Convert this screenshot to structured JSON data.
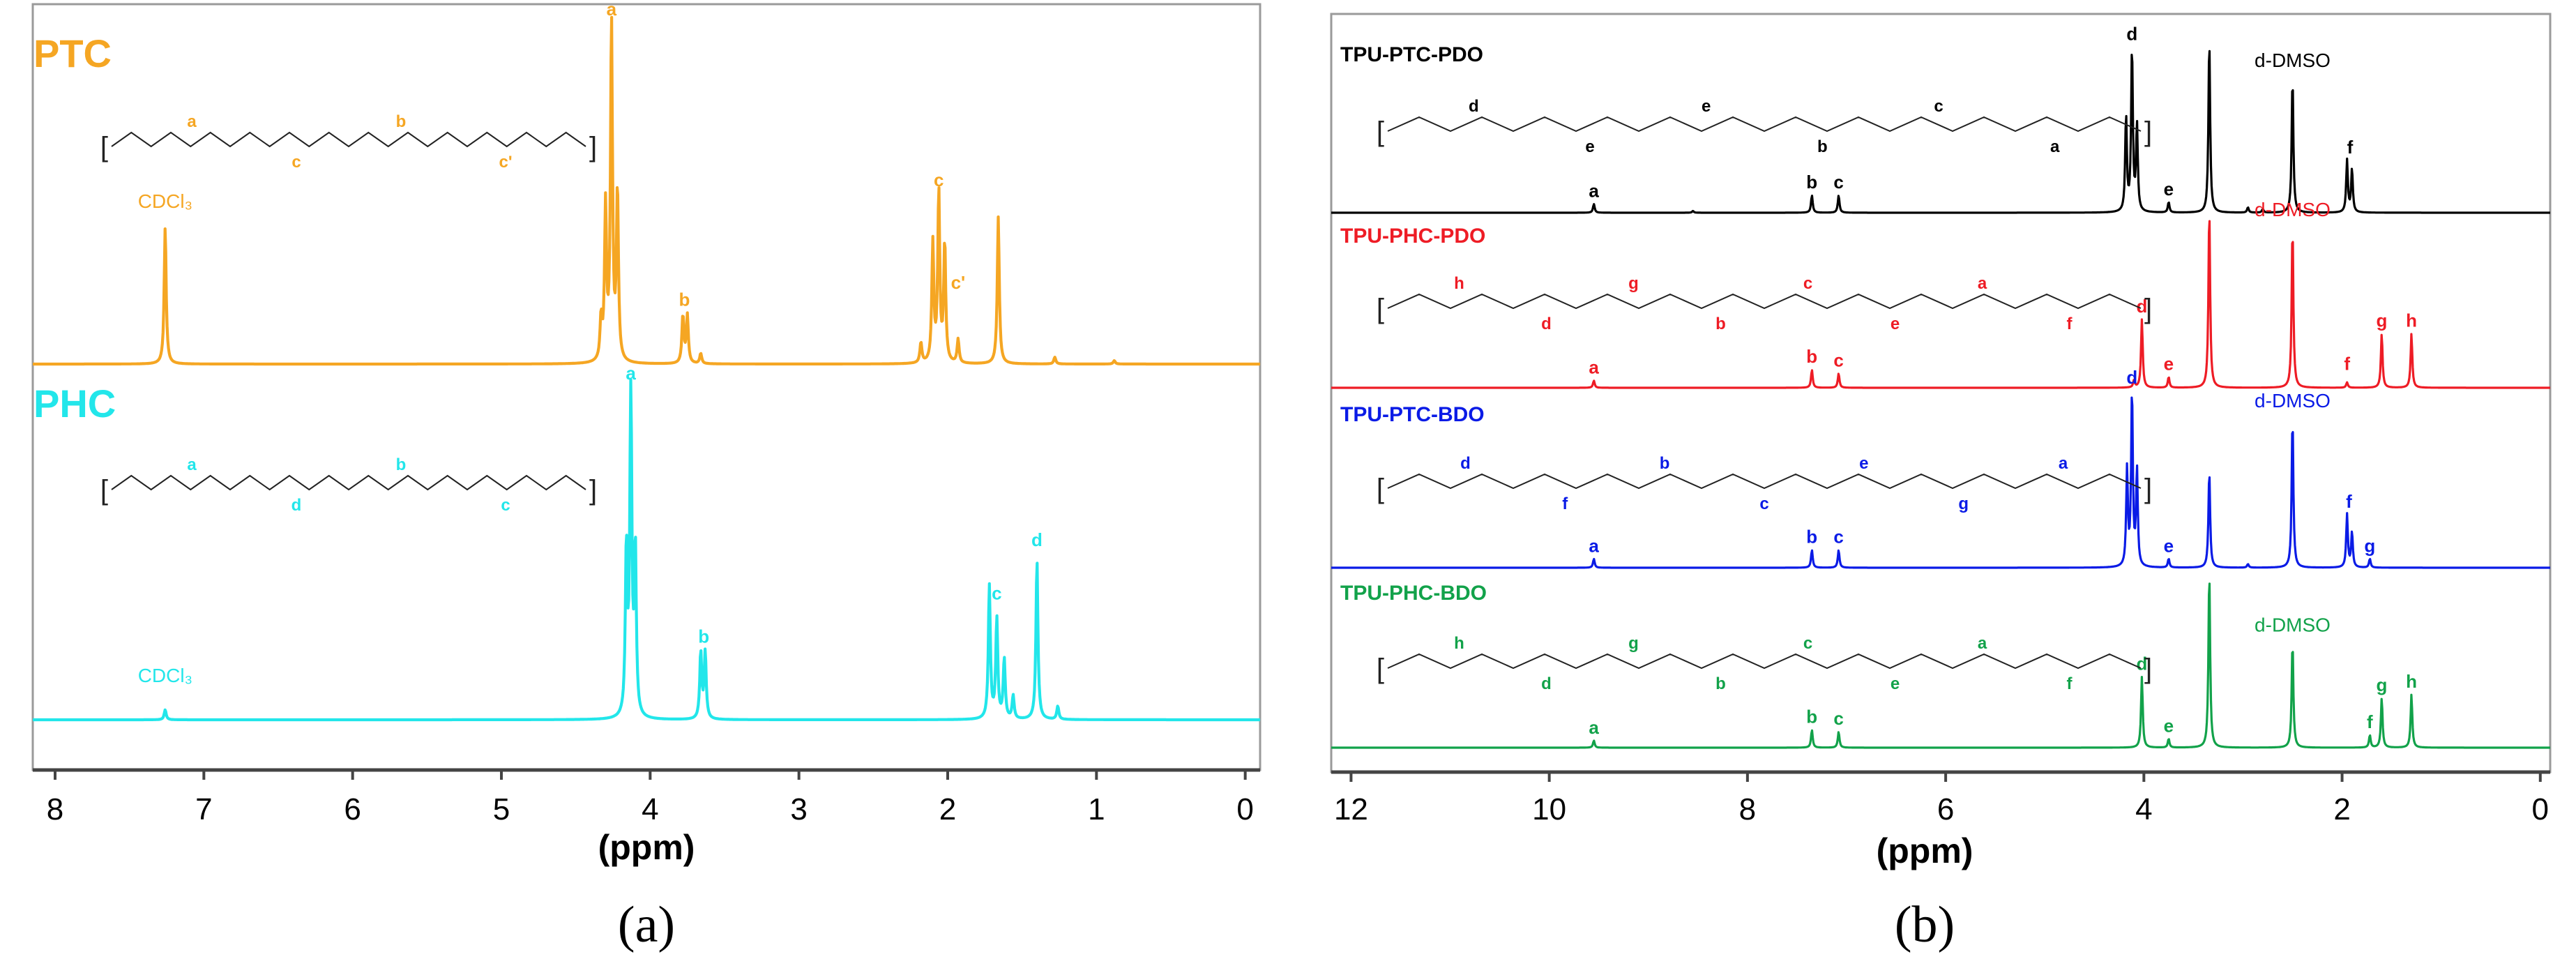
{
  "chart_data": [
    {
      "panel_label": "(a)",
      "type": "line",
      "subtype": "stacked 1H NMR spectra",
      "xlabel": "(ppm)",
      "xlim": [
        8.15,
        -0.1
      ],
      "x_reversed": true,
      "x_ticks": [
        8,
        7,
        6,
        5,
        4,
        3,
        2,
        1,
        0
      ],
      "grid": false,
      "series": [
        {
          "name": "PTC",
          "color": "#F5A623",
          "peaks": [
            {
              "ppm": 7.26,
              "height": 0.4
            },
            {
              "ppm": 4.33,
              "height": 0.12
            },
            {
              "ppm": 4.3,
              "height": 0.45
            },
            {
              "ppm": 4.26,
              "height": 1.0
            },
            {
              "ppm": 4.22,
              "height": 0.5
            },
            {
              "ppm": 3.78,
              "height": 0.14
            },
            {
              "ppm": 3.75,
              "height": 0.14
            },
            {
              "ppm": 3.66,
              "height": 0.03
            },
            {
              "ppm": 2.18,
              "height": 0.06
            },
            {
              "ppm": 2.1,
              "height": 0.35
            },
            {
              "ppm": 2.06,
              "height": 0.5
            },
            {
              "ppm": 2.02,
              "height": 0.35
            },
            {
              "ppm": 1.93,
              "height": 0.07
            },
            {
              "ppm": 1.66,
              "height": 0.43
            },
            {
              "ppm": 1.28,
              "height": 0.02
            },
            {
              "ppm": 0.88,
              "height": 0.01
            }
          ],
          "annotations": [
            {
              "text": "a",
              "ppm": 4.26,
              "height": 1.0
            },
            {
              "text": "b",
              "ppm": 3.77,
              "height": 0.15
            },
            {
              "text": "c",
              "ppm": 2.06,
              "height": 0.5
            },
            {
              "text": "c'",
              "ppm": 1.93,
              "height": 0.2
            }
          ],
          "solvent": {
            "text": "CDCl₃",
            "ppm": 7.26,
            "height": 0.4
          },
          "structure_labels": [
            "a",
            "c",
            "b",
            "c'"
          ]
        },
        {
          "name": "PHC",
          "color": "#22E6EA",
          "peaks": [
            {
              "ppm": 7.26,
              "height": 0.03
            },
            {
              "ppm": 4.16,
              "height": 0.5
            },
            {
              "ppm": 4.13,
              "height": 1.0
            },
            {
              "ppm": 4.1,
              "height": 0.5
            },
            {
              "ppm": 3.66,
              "height": 0.2
            },
            {
              "ppm": 3.63,
              "height": 0.2
            },
            {
              "ppm": 1.72,
              "height": 0.4
            },
            {
              "ppm": 1.67,
              "height": 0.3
            },
            {
              "ppm": 1.62,
              "height": 0.18
            },
            {
              "ppm": 1.56,
              "height": 0.07
            },
            {
              "ppm": 1.4,
              "height": 0.48
            },
            {
              "ppm": 1.26,
              "height": 0.04
            }
          ],
          "annotations": [
            {
              "text": "a",
              "ppm": 4.13,
              "height": 1.0
            },
            {
              "text": "b",
              "ppm": 3.64,
              "height": 0.21
            },
            {
              "text": "c",
              "ppm": 1.67,
              "height": 0.34
            },
            {
              "text": "d",
              "ppm": 1.4,
              "height": 0.5
            }
          ],
          "solvent": {
            "text": "CDCl₃",
            "ppm": 7.26,
            "height": 0.05
          },
          "structure_labels": [
            "a",
            "d",
            "b",
            "c"
          ]
        }
      ]
    },
    {
      "panel_label": "(b)",
      "type": "line",
      "subtype": "stacked 1H NMR spectra",
      "xlabel": "(ppm)",
      "xlim": [
        12.2,
        -0.1
      ],
      "x_reversed": true,
      "x_ticks": [
        12,
        10,
        8,
        6,
        4,
        2,
        0
      ],
      "grid": false,
      "series": [
        {
          "name": "TPU-PTC-PDO",
          "color": "#000000",
          "peaks": [
            {
              "ppm": 9.55,
              "height": 0.05
            },
            {
              "ppm": 8.55,
              "height": 0.01
            },
            {
              "ppm": 7.35,
              "height": 0.1
            },
            {
              "ppm": 7.08,
              "height": 0.1
            },
            {
              "ppm": 4.18,
              "height": 0.55
            },
            {
              "ppm": 4.12,
              "height": 0.95
            },
            {
              "ppm": 4.07,
              "height": 0.5
            },
            {
              "ppm": 3.75,
              "height": 0.06
            },
            {
              "ppm": 3.34,
              "height": 1.0
            },
            {
              "ppm": 2.95,
              "height": 0.03
            },
            {
              "ppm": 2.8,
              "height": 0.02
            },
            {
              "ppm": 2.5,
              "height": 0.78
            },
            {
              "ppm": 1.95,
              "height": 0.3
            },
            {
              "ppm": 1.9,
              "height": 0.25
            }
          ],
          "annotations": [
            {
              "text": "a",
              "ppm": 9.55,
              "height": 0.05
            },
            {
              "text": "b",
              "ppm": 7.35,
              "height": 0.1
            },
            {
              "text": "c",
              "ppm": 7.08,
              "height": 0.1
            },
            {
              "text": "d",
              "ppm": 4.12,
              "height": 0.95
            },
            {
              "text": "e",
              "ppm": 3.75,
              "height": 0.06
            },
            {
              "text": "f",
              "ppm": 1.92,
              "height": 0.3
            }
          ],
          "solvent": {
            "text": "d-DMSO",
            "ppm": 2.5,
            "height": 0.78
          },
          "structure_labels": [
            "d",
            "e",
            "e",
            "b",
            "c",
            "a"
          ]
        },
        {
          "name": "TPU-PHC-PDO",
          "color": "#EE1C25",
          "peaks": [
            {
              "ppm": 9.55,
              "height": 0.04
            },
            {
              "ppm": 7.35,
              "height": 0.1
            },
            {
              "ppm": 7.08,
              "height": 0.08
            },
            {
              "ppm": 4.1,
              "height": 0.04
            },
            {
              "ppm": 4.02,
              "height": 0.38
            },
            {
              "ppm": 3.75,
              "height": 0.06
            },
            {
              "ppm": 3.34,
              "height": 1.0
            },
            {
              "ppm": 2.5,
              "height": 0.9
            },
            {
              "ppm": 1.95,
              "height": 0.03
            },
            {
              "ppm": 1.6,
              "height": 0.3
            },
            {
              "ppm": 1.3,
              "height": 0.3
            }
          ],
          "annotations": [
            {
              "text": "a",
              "ppm": 9.55,
              "height": 0.04
            },
            {
              "text": "b",
              "ppm": 7.35,
              "height": 0.1
            },
            {
              "text": "c",
              "ppm": 7.08,
              "height": 0.08
            },
            {
              "text": "d",
              "ppm": 4.02,
              "height": 0.38
            },
            {
              "text": "e",
              "ppm": 3.75,
              "height": 0.06
            },
            {
              "text": "f",
              "ppm": 1.95,
              "height": 0.06
            },
            {
              "text": "g",
              "ppm": 1.6,
              "height": 0.3
            },
            {
              "text": "h",
              "ppm": 1.3,
              "height": 0.3
            }
          ],
          "solvent": {
            "text": "d-DMSO",
            "ppm": 2.5,
            "height": 0.9
          },
          "structure_labels": [
            "h",
            "d",
            "g",
            "b",
            "c",
            "e",
            "a",
            "f"
          ]
        },
        {
          "name": "TPU-PTC-BDO",
          "color": "#0A1BE6",
          "peaks": [
            {
              "ppm": 9.55,
              "height": 0.05
            },
            {
              "ppm": 7.35,
              "height": 0.1
            },
            {
              "ppm": 7.08,
              "height": 0.1
            },
            {
              "ppm": 4.17,
              "height": 0.55
            },
            {
              "ppm": 4.12,
              "height": 1.0
            },
            {
              "ppm": 4.07,
              "height": 0.55
            },
            {
              "ppm": 3.75,
              "height": 0.05
            },
            {
              "ppm": 3.34,
              "height": 0.55
            },
            {
              "ppm": 2.95,
              "height": 0.02
            },
            {
              "ppm": 2.5,
              "height": 0.85
            },
            {
              "ppm": 1.95,
              "height": 0.3
            },
            {
              "ppm": 1.9,
              "height": 0.2
            },
            {
              "ppm": 1.72,
              "height": 0.05
            }
          ],
          "annotations": [
            {
              "text": "a",
              "ppm": 9.55,
              "height": 0.05
            },
            {
              "text": "b",
              "ppm": 7.35,
              "height": 0.1
            },
            {
              "text": "c",
              "ppm": 7.08,
              "height": 0.1
            },
            {
              "text": "d",
              "ppm": 4.12,
              "height": 1.0
            },
            {
              "text": "e",
              "ppm": 3.75,
              "height": 0.05
            },
            {
              "text": "f",
              "ppm": 1.93,
              "height": 0.3
            },
            {
              "text": "g",
              "ppm": 1.72,
              "height": 0.05
            }
          ],
          "solvent": {
            "text": "d-DMSO",
            "ppm": 2.5,
            "height": 0.85
          },
          "structure_labels": [
            "d",
            "f",
            "b",
            "c",
            "e",
            "g",
            "a"
          ]
        },
        {
          "name": "TPU-PHC-BDO",
          "color": "#12A24A",
          "peaks": [
            {
              "ppm": 9.55,
              "height": 0.04
            },
            {
              "ppm": 7.35,
              "height": 0.1
            },
            {
              "ppm": 7.08,
              "height": 0.09
            },
            {
              "ppm": 4.02,
              "height": 0.4
            },
            {
              "ppm": 3.75,
              "height": 0.05
            },
            {
              "ppm": 3.34,
              "height": 1.0
            },
            {
              "ppm": 2.5,
              "height": 0.6
            },
            {
              "ppm": 1.72,
              "height": 0.07
            },
            {
              "ppm": 1.6,
              "height": 0.28
            },
            {
              "ppm": 1.3,
              "height": 0.3
            }
          ],
          "annotations": [
            {
              "text": "a",
              "ppm": 9.55,
              "height": 0.04
            },
            {
              "text": "b",
              "ppm": 7.35,
              "height": 0.1
            },
            {
              "text": "c",
              "ppm": 7.08,
              "height": 0.09
            },
            {
              "text": "d",
              "ppm": 4.02,
              "height": 0.4
            },
            {
              "text": "e",
              "ppm": 3.75,
              "height": 0.05
            },
            {
              "text": "f",
              "ppm": 1.72,
              "height": 0.07
            },
            {
              "text": "g",
              "ppm": 1.6,
              "height": 0.28
            },
            {
              "text": "h",
              "ppm": 1.3,
              "height": 0.3
            }
          ],
          "solvent": {
            "text": "d-DMSO",
            "ppm": 2.5,
            "height": 0.6
          },
          "structure_labels": [
            "h",
            "d",
            "g",
            "b",
            "c",
            "e",
            "a",
            "f"
          ]
        }
      ]
    }
  ]
}
